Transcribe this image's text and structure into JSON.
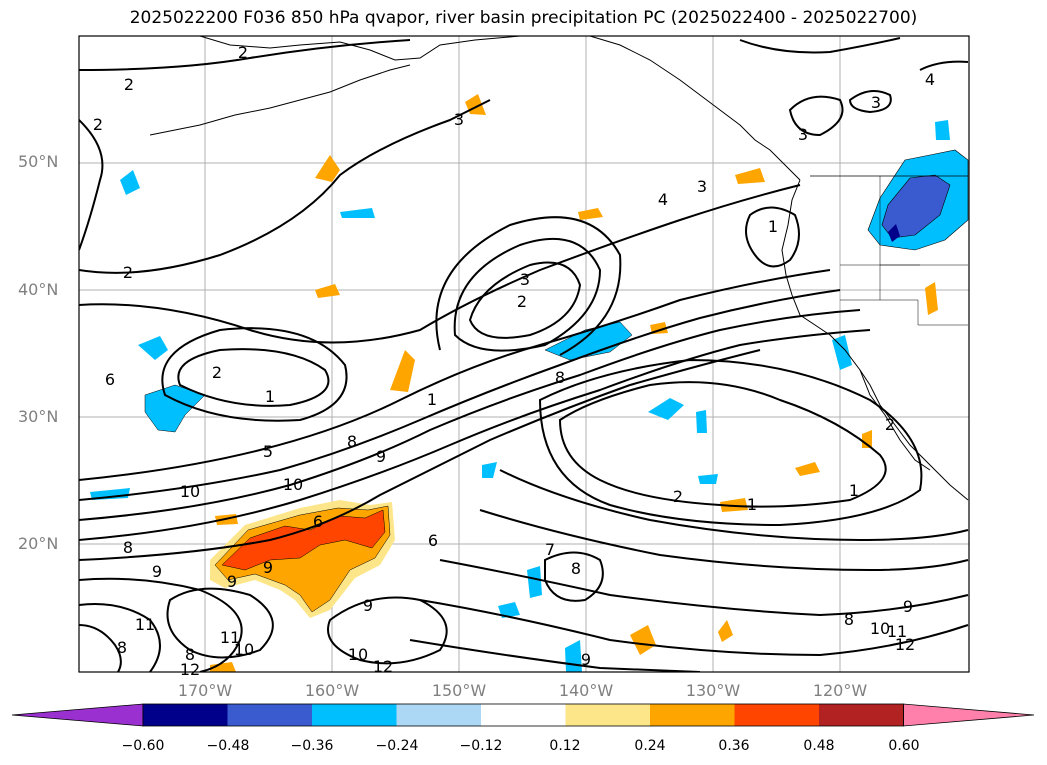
{
  "title": "2025022200 F036 850 hPa qvapor, river basin precipitation PC (2025022400 - 2025022700)",
  "map": {
    "lat_labels": [
      "50°N",
      "40°N",
      "30°N",
      "20°N"
    ],
    "lon_labels": [
      "170°W",
      "160°W",
      "150°W",
      "140°W",
      "130°W",
      "120°W"
    ],
    "grid_lon": [
      -170,
      -160,
      -150,
      -140,
      -130,
      -120
    ],
    "grid_lat": [
      50,
      40,
      30,
      20
    ],
    "contour_labels": [
      "2",
      "2",
      "2",
      "2",
      "3",
      "3",
      "3",
      "3",
      "4",
      "4",
      "3",
      "2",
      "1",
      "1",
      "6",
      "2",
      "1",
      "5",
      "10",
      "10",
      "9",
      "8",
      "9",
      "6",
      "8",
      "9",
      "9",
      "8",
      "11",
      "10",
      "8",
      "12",
      "10",
      "11",
      "12",
      "9",
      "8",
      "7",
      "8",
      "6",
      "2",
      "1",
      "1",
      "2",
      "9",
      "10",
      "11",
      "12",
      "8",
      "9"
    ]
  },
  "colorbar": {
    "ticks": [
      "−0.60",
      "−0.48",
      "−0.36",
      "−0.24",
      "−0.12",
      "0.12",
      "0.24",
      "0.36",
      "0.48",
      "0.60"
    ],
    "colors": [
      "#9b30d0",
      "#00008b",
      "#3a5bd0",
      "#00bfff",
      "#add8f5",
      "#ffffff",
      "#fde68a",
      "#ffa500",
      "#ff4500",
      "#b22222",
      "#ff80ab"
    ]
  }
}
